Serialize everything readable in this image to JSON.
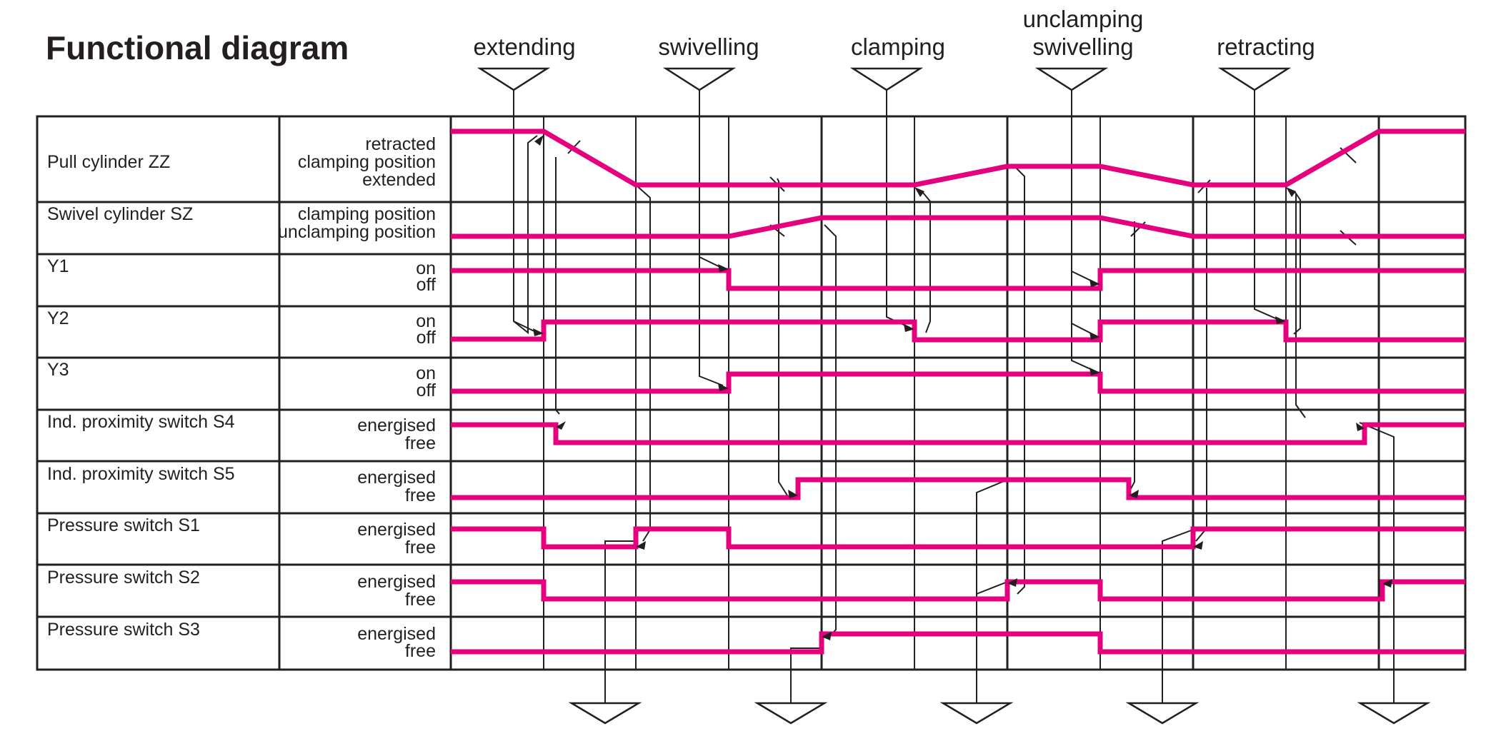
{
  "title": "Functional diagram",
  "phases_top": [
    {
      "id": "extending",
      "lines": [
        "extending"
      ]
    },
    {
      "id": "swivelling",
      "lines": [
        "swivelling"
      ]
    },
    {
      "id": "clamping",
      "lines": [
        "clamping"
      ]
    },
    {
      "id": "unclamping-swivelling",
      "lines": [
        "unclamping",
        "swivelling"
      ]
    },
    {
      "id": "retracting",
      "lines": [
        "retracting"
      ]
    }
  ],
  "rows": [
    {
      "name": "Pull cylinder ZZ",
      "states": [
        "retracted",
        "clamping position",
        "extended"
      ]
    },
    {
      "name": "Swivel cylinder SZ",
      "states": [
        "clamping position",
        "unclamping position"
      ]
    },
    {
      "name": "Y1",
      "states": [
        "on",
        "off"
      ]
    },
    {
      "name": "Y2",
      "states": [
        "on",
        "off"
      ]
    },
    {
      "name": "Y3",
      "states": [
        "on",
        "off"
      ]
    },
    {
      "name": "Ind. proximity switch S4",
      "states": [
        "energised",
        "free"
      ]
    },
    {
      "name": "Ind. proximity switch S5",
      "states": [
        "energised",
        "free"
      ]
    },
    {
      "name": "Pressure switch S1",
      "states": [
        "energised",
        "free"
      ]
    },
    {
      "name": "Pressure switch S2",
      "states": [
        "energised",
        "free"
      ]
    },
    {
      "name": "Pressure switch S3",
      "states": [
        "energised",
        "free"
      ]
    }
  ],
  "colors": {
    "signal": "#e5007d",
    "lines": "#231f20"
  }
}
